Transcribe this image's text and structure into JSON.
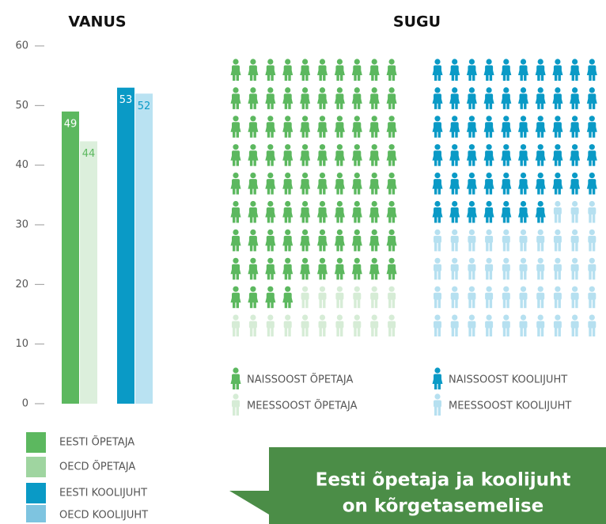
{
  "chart_data": [
    {
      "type": "bar",
      "title": "VANUS",
      "ylim": [
        0,
        60
      ],
      "yticks": [
        0,
        10,
        20,
        30,
        40,
        50,
        60
      ],
      "series": [
        {
          "name": "EESTI ÕPETAJA",
          "color": "#5cb85f",
          "legend_color": "#5cb85f",
          "label_color": "#ffffff",
          "values": [
            49
          ]
        },
        {
          "name": "OECD ÕPETAJA",
          "color": "#dcefdc",
          "legend_color": "#9fd5a0",
          "label_color": "#5cb85f",
          "values": [
            44
          ]
        },
        {
          "name": "EESTI KOOLIJUHT",
          "color": "#0a9ac6",
          "legend_color": "#0a9ac6",
          "label_color": "#ffffff",
          "values": [
            53
          ]
        },
        {
          "name": "OECD KOOLIJUHT",
          "color": "#b9e2f2",
          "legend_color": "#7ec4e0",
          "label_color": "#0a9ac6",
          "values": [
            52
          ]
        }
      ]
    },
    {
      "type": "pictogram",
      "title": "SUGU",
      "panels": [
        {
          "series": [
            {
              "name": "NAISSOOST ÕPETAJA",
              "color": "#5cb85f",
              "values": [
                84
              ]
            },
            {
              "name": "MEESSOOST ÕPETAJA",
              "color": "#d6ecd6",
              "values": [
                16
              ]
            }
          ]
        },
        {
          "series": [
            {
              "name": "NAISSOOST KOOLIJUHT",
              "color": "#0a9ac6",
              "values": [
                57
              ]
            },
            {
              "name": "MEESSOOST KOOLIJUHT",
              "color": "#b6e0f0",
              "values": [
                43
              ]
            }
          ]
        }
      ]
    }
  ],
  "banner": {
    "lines": [
      "Eesti õpetaja ja koolijuht",
      "on kõrgetasemelise"
    ]
  }
}
